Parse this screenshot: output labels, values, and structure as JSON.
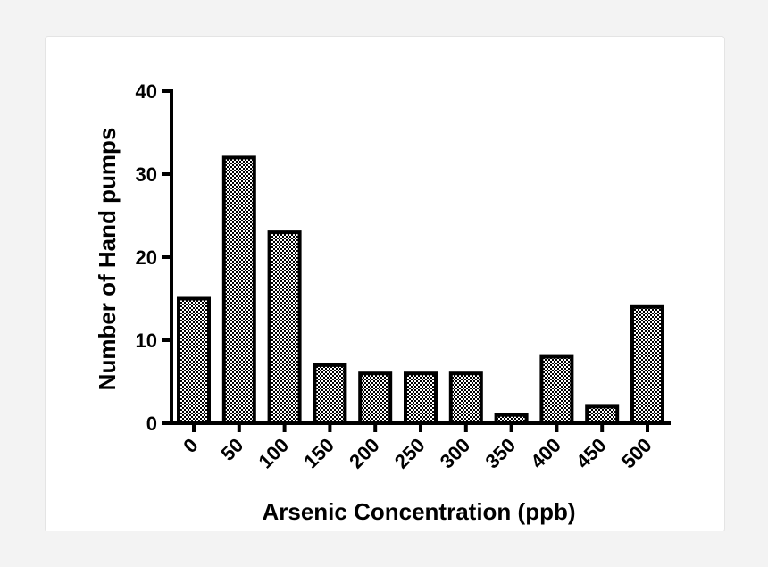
{
  "chart_data": {
    "type": "bar",
    "title": "",
    "xlabel": "Arsenic Concentration (ppb)",
    "ylabel": "Number of Hand pumps",
    "categories": [
      "0",
      "50",
      "100",
      "150",
      "200",
      "250",
      "300",
      "350",
      "400",
      "450",
      "500"
    ],
    "values": [
      15,
      32,
      23,
      7,
      6,
      6,
      6,
      1,
      8,
      2,
      14
    ],
    "ylim": [
      0,
      40
    ],
    "yticks": [
      "0",
      "10",
      "20",
      "30",
      "40"
    ],
    "grid": false,
    "legend": "none",
    "bar_fill": "checkerboard",
    "colors": {
      "bar_stroke": "#000000",
      "checker_dark": "#000000",
      "checker_light": "#ffffff"
    }
  }
}
